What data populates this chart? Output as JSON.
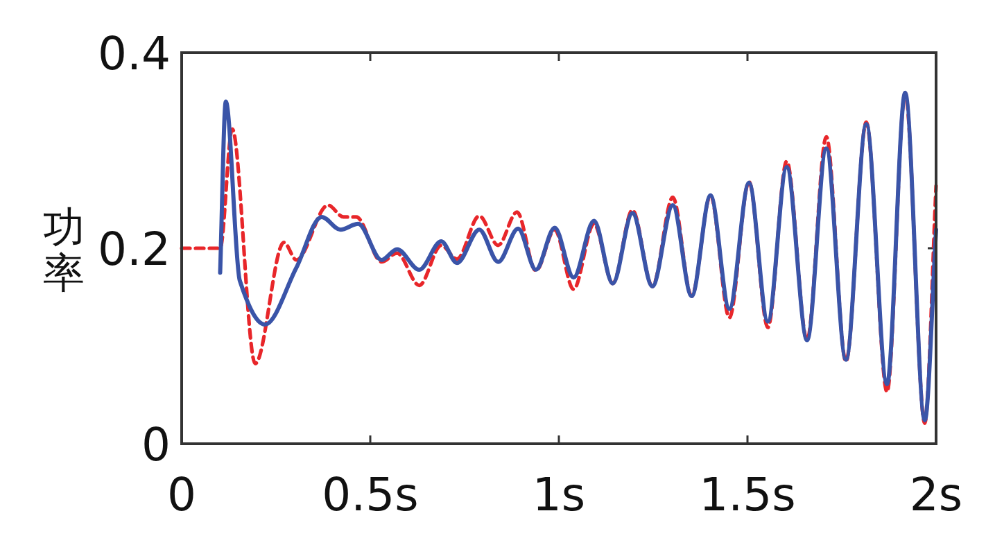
{
  "chart_data": {
    "type": "line",
    "ylabel": "功率",
    "xlim": [
      0,
      2
    ],
    "ylim": [
      0,
      0.4
    ],
    "xticks": [
      {
        "value": 0,
        "label": "0"
      },
      {
        "value": 0.5,
        "label": "0.5s"
      },
      {
        "value": 1,
        "label": "1s"
      },
      {
        "value": 1.5,
        "label": "1.5s"
      },
      {
        "value": 2,
        "label": "2s"
      }
    ],
    "yticks": [
      0,
      0.2,
      0.4
    ],
    "series": [
      {
        "color": "#e8262a",
        "line_style": "dashed",
        "x": [
          0,
          0.102,
          0.134,
          0.195,
          0.271,
          0.304,
          0.388,
          0.429,
          0.463,
          0.53,
          0.571,
          0.63,
          0.688,
          0.73,
          0.789,
          0.839,
          0.889,
          0.939,
          0.989,
          1.039,
          1.093,
          1.143,
          1.195,
          1.248,
          1.302,
          1.352,
          1.402,
          1.452,
          1.504,
          1.554,
          1.604,
          1.658,
          1.709,
          1.761,
          1.815,
          1.87,
          1.918,
          1.97,
          2.0
        ],
        "values": [
          0.2,
          0.2,
          0.322,
          0.082,
          0.206,
          0.188,
          0.244,
          0.232,
          0.232,
          0.186,
          0.195,
          0.162,
          0.203,
          0.189,
          0.233,
          0.203,
          0.237,
          0.177,
          0.219,
          0.158,
          0.225,
          0.164,
          0.239,
          0.161,
          0.252,
          0.151,
          0.254,
          0.129,
          0.268,
          0.119,
          0.289,
          0.106,
          0.314,
          0.084,
          0.329,
          0.053,
          0.359,
          0.021,
          0.264
        ]
      },
      {
        "color": "#3a54a8",
        "line_style": "solid",
        "x": [
          0.102,
          0.117,
          0.154,
          0.221,
          0.304,
          0.371,
          0.421,
          0.468,
          0.53,
          0.571,
          0.63,
          0.688,
          0.73,
          0.789,
          0.839,
          0.892,
          0.939,
          0.989,
          1.039,
          1.093,
          1.143,
          1.195,
          1.248,
          1.302,
          1.352,
          1.402,
          1.452,
          1.504,
          1.554,
          1.604,
          1.658,
          1.709,
          1.761,
          1.815,
          1.87,
          1.918,
          1.97,
          2.0
        ],
        "values": [
          0.175,
          0.35,
          0.167,
          0.122,
          0.18,
          0.232,
          0.219,
          0.225,
          0.188,
          0.199,
          0.178,
          0.207,
          0.185,
          0.219,
          0.186,
          0.22,
          0.178,
          0.221,
          0.17,
          0.228,
          0.164,
          0.236,
          0.161,
          0.244,
          0.151,
          0.254,
          0.138,
          0.267,
          0.125,
          0.283,
          0.106,
          0.302,
          0.086,
          0.327,
          0.061,
          0.359,
          0.024,
          0.219
        ]
      }
    ]
  }
}
